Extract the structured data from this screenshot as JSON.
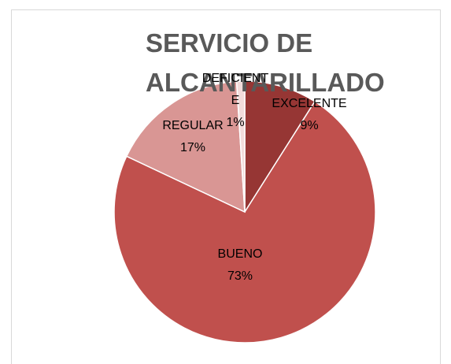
{
  "chart_data": {
    "type": "pie",
    "title": "SERVICIO DE ALCANTARILLADO",
    "categories": [
      "EXCELENTE",
      "BUENO",
      "REGULAR",
      "DEFICIENTE"
    ],
    "values": [
      9,
      73,
      17,
      1
    ],
    "value_labels": [
      "9%",
      "73%",
      "17%",
      "1%"
    ],
    "colors": [
      "#963634",
      "#c0504d",
      "#d99694",
      "#f2dcdb"
    ]
  }
}
